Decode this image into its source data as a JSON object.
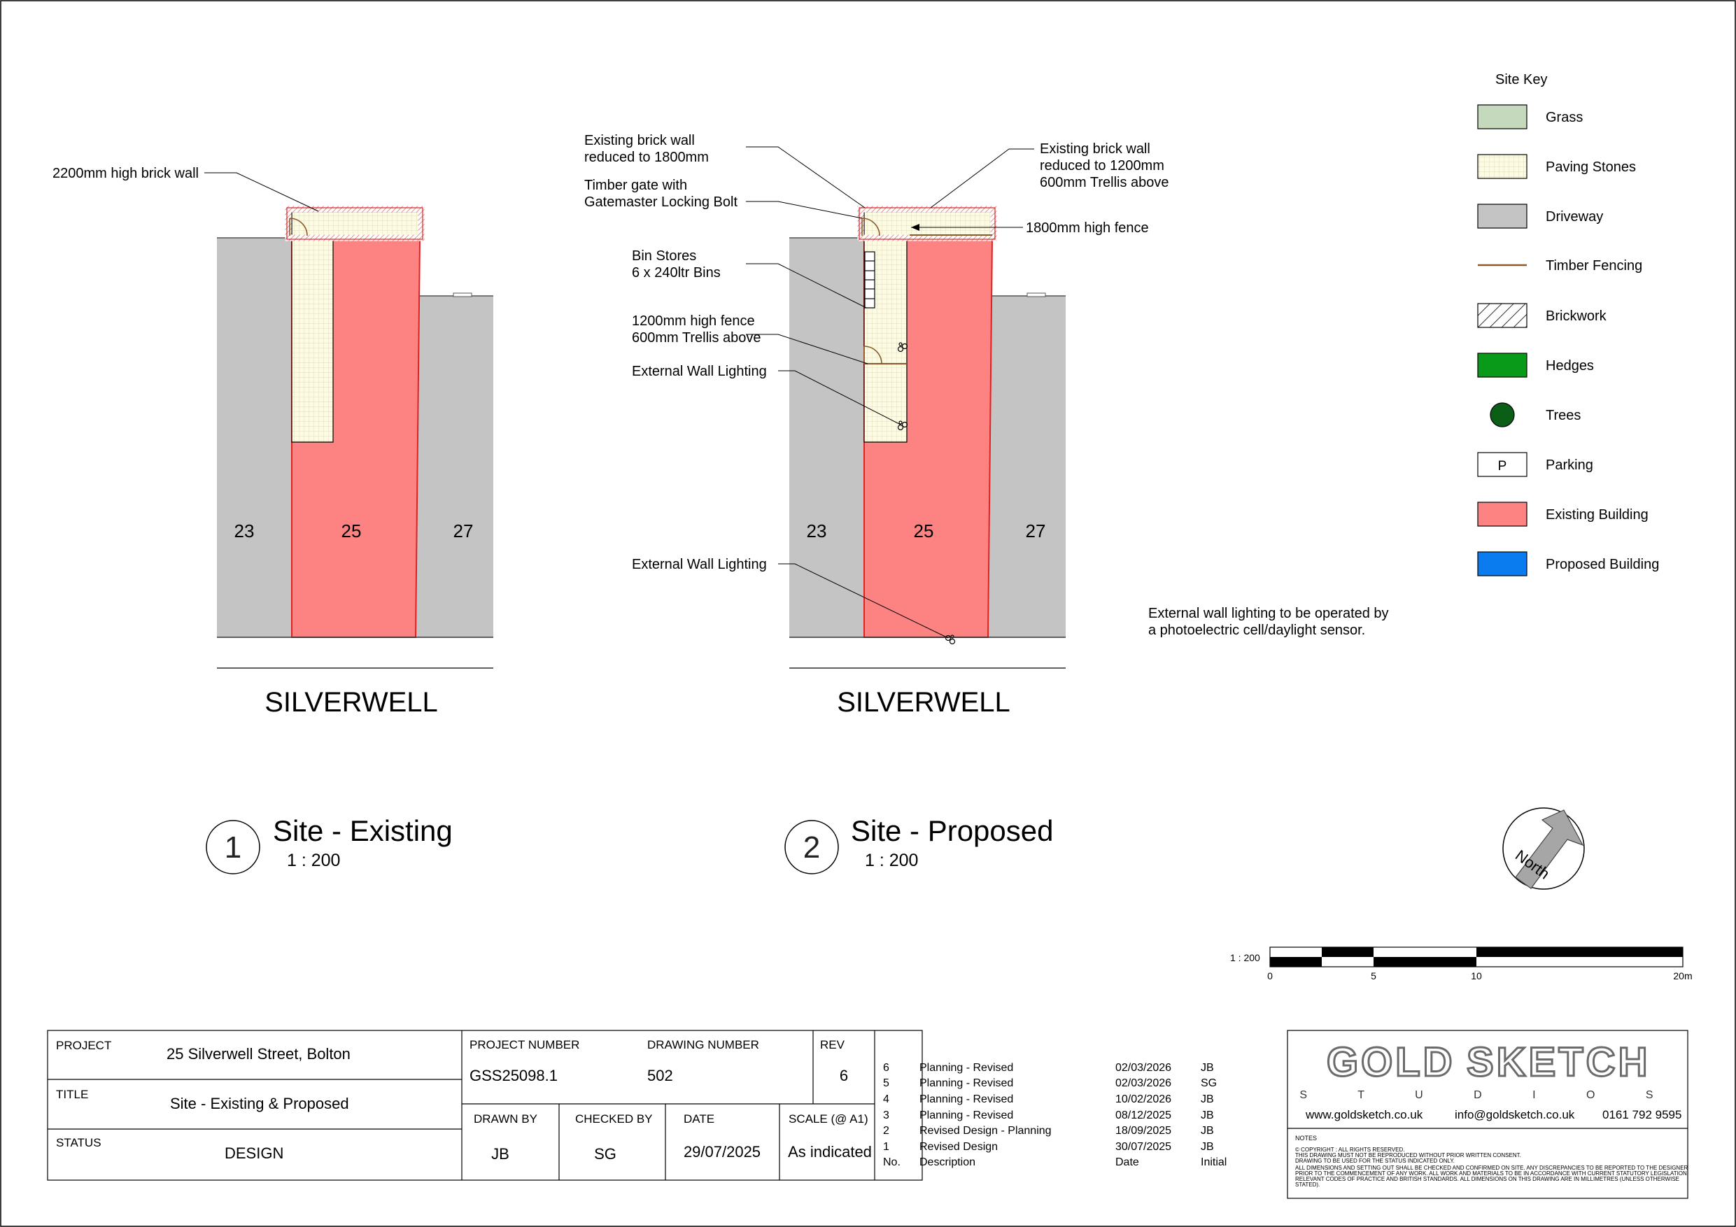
{
  "site_existing": {
    "leader_label": "2200mm high brick wall",
    "house_numbers": [
      "23",
      "25",
      "27"
    ],
    "street": "SILVERWELL",
    "view_number": "1",
    "view_title": "Site - Existing",
    "view_scale": "1 : 200"
  },
  "site_proposed": {
    "labels": {
      "brick_wall_1800_l1": "Existing brick wall",
      "brick_wall_1800_l2": "reduced to 1800mm",
      "gate_l1": "Timber gate with",
      "gate_l2": "Gatemaster Locking Bolt",
      "bins_l1": "Bin Stores",
      "bins_l2": "6 x 240ltr Bins",
      "fence_1200_l1": "1200mm high fence",
      "fence_1200_l2": "600mm Trellis above",
      "lighting_upper": "External Wall Lighting",
      "lighting_lower": "External Wall Lighting",
      "brick_wall_1200_l1": "Existing brick wall",
      "brick_wall_1200_l2": "reduced to 1200mm",
      "brick_wall_1200_l3": "600mm Trellis above",
      "fence_1800": "1800mm high fence"
    },
    "house_numbers": [
      "23",
      "25",
      "27"
    ],
    "street": "SILVERWELL",
    "view_number": "2",
    "view_title": "Site - Proposed",
    "view_scale": "1 : 200",
    "note_l1": "External wall lighting to be operated by",
    "note_l2": "a photoelectric cell/daylight sensor."
  },
  "site_key": {
    "title": "Site Key",
    "items": [
      {
        "label": "Grass",
        "swatch": "grass",
        "color": "#c5d9bd"
      },
      {
        "label": "Paving Stones",
        "swatch": "paving",
        "color": "#fdfce3"
      },
      {
        "label": "Driveway",
        "swatch": "driveway",
        "color": "#c4c4c4"
      },
      {
        "label": "Timber Fencing",
        "swatch": "fence",
        "color": "#8b5a2b"
      },
      {
        "label": "Brickwork",
        "swatch": "hatch",
        "color": "#ffffff"
      },
      {
        "label": "Hedges",
        "swatch": "hedge",
        "color": "#0a9a1a"
      },
      {
        "label": "Trees",
        "swatch": "tree",
        "color": "#0b5e16"
      },
      {
        "label": "Parking",
        "swatch": "parking",
        "color": "#ffffff",
        "text": "P"
      },
      {
        "label": "Existing Building",
        "swatch": "existing",
        "color": "#fd8383"
      },
      {
        "label": "Proposed Building",
        "swatch": "proposed",
        "color": "#0a7cf0"
      }
    ]
  },
  "north": {
    "label": "North"
  },
  "scale_bar": {
    "ratio": "1 : 200",
    "ticks": [
      "0",
      "5",
      "10",
      "20m"
    ]
  },
  "title_block": {
    "project_label": "PROJECT",
    "project_value": "25 Silverwell Street, Bolton",
    "title_label": "TITLE",
    "title_value": "Site - Existing & Proposed",
    "status_label": "STATUS",
    "status_value": "DESIGN",
    "project_number_label": "PROJECT NUMBER",
    "project_number_value": "GSS25098.1",
    "drawing_number_label": "DRAWING NUMBER",
    "drawing_number_value": "502",
    "rev_label": "REV",
    "rev_value": "6",
    "drawn_by_label": "DRAWN BY",
    "drawn_by_value": "JB",
    "checked_by_label": "CHECKED BY",
    "checked_by_value": "SG",
    "date_label": "DATE",
    "date_value": "29/07/2025",
    "scale_label": "SCALE (@ A1)",
    "scale_value": "As indicated"
  },
  "revisions": {
    "rows": [
      {
        "no": "6",
        "desc": "Planning - Revised",
        "date": "02/03/2026",
        "initial": "JB"
      },
      {
        "no": "5",
        "desc": "Planning - Revised",
        "date": "02/03/2026",
        "initial": "SG"
      },
      {
        "no": "4",
        "desc": "Planning - Revised",
        "date": "10/02/2026",
        "initial": "JB"
      },
      {
        "no": "3",
        "desc": "Planning - Revised",
        "date": "08/12/2025",
        "initial": "JB"
      },
      {
        "no": "2",
        "desc": "Revised Design - Planning",
        "date": "18/09/2025",
        "initial": "JB"
      },
      {
        "no": "1",
        "desc": "Revised Design",
        "date": "30/07/2025",
        "initial": "JB"
      }
    ],
    "header": {
      "no": "No.",
      "desc": "Description",
      "date": "Date",
      "initial": "Initial"
    }
  },
  "company": {
    "logo_word1": "GOLD",
    "logo_word2": "SKETCH",
    "logo_sub": "S T U D I O S",
    "website": "www.goldsketch.co.uk",
    "email": "info@goldsketch.co.uk",
    "phone": "0161 792 9595"
  },
  "notes": {
    "heading": "NOTES",
    "lines": [
      "© COPYRIGHT : ALL RIGHTS RESERVED.",
      "THIS DRAWING MUST NOT BE REPRODUCED WITHOUT PRIOR WRITTEN CONSENT.",
      "DRAWING TO BE USED FOR THE STATUS INDICATED ONLY.",
      "ALL DIMENSIONS AND SETTING OUT SHALL BE CHECKED AND CONFIRMED ON SITE. ANY DISCREPANCIES TO BE REPORTED TO THE DESIGNER",
      "PRIOR TO THE COMMENCEMENT OF ANY WORK. ALL WORK AND MATERIALS TO BE IN ACCORDANCE WITH CURRENT STATUTORY LEGISLATION,",
      "RELEVANT CODES OF PRACTICE AND BRITISH STANDARDS. ALL DIMENSIONS ON THIS DRAWING ARE IN MILLIMETRES (UNLESS OTHERWISE",
      "STATED)."
    ]
  }
}
